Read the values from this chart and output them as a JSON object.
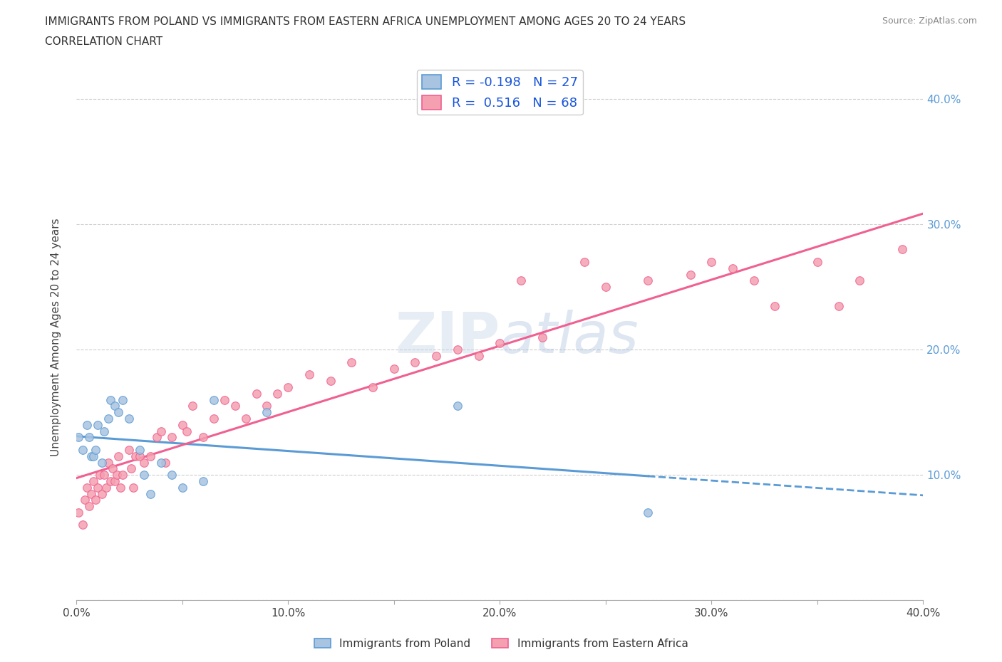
{
  "title_line1": "IMMIGRANTS FROM POLAND VS IMMIGRANTS FROM EASTERN AFRICA UNEMPLOYMENT AMONG AGES 20 TO 24 YEARS",
  "title_line2": "CORRELATION CHART",
  "source": "Source: ZipAtlas.com",
  "ylabel": "Unemployment Among Ages 20 to 24 years",
  "xlim": [
    0.0,
    0.4
  ],
  "ylim": [
    0.0,
    0.42
  ],
  "legend_label1": "Immigrants from Poland",
  "legend_label2": "Immigrants from Eastern Africa",
  "R1": -0.198,
  "N1": 27,
  "R2": 0.516,
  "N2": 68,
  "color_poland": "#a8c4e0",
  "color_eastern_africa": "#f4a0b0",
  "trend_color_poland": "#5b9bd5",
  "trend_color_eastern_africa": "#f06090",
  "background_color": "#ffffff",
  "poland_x": [
    0.001,
    0.003,
    0.005,
    0.006,
    0.007,
    0.008,
    0.009,
    0.01,
    0.012,
    0.013,
    0.015,
    0.016,
    0.018,
    0.02,
    0.022,
    0.025,
    0.03,
    0.032,
    0.035,
    0.04,
    0.045,
    0.05,
    0.06,
    0.065,
    0.09,
    0.18,
    0.27
  ],
  "poland_y": [
    0.13,
    0.12,
    0.14,
    0.13,
    0.115,
    0.115,
    0.12,
    0.14,
    0.11,
    0.135,
    0.145,
    0.16,
    0.155,
    0.15,
    0.16,
    0.145,
    0.12,
    0.1,
    0.085,
    0.11,
    0.1,
    0.09,
    0.095,
    0.16,
    0.15,
    0.155,
    0.07
  ],
  "eastern_africa_x": [
    0.001,
    0.003,
    0.004,
    0.005,
    0.006,
    0.007,
    0.008,
    0.009,
    0.01,
    0.011,
    0.012,
    0.013,
    0.014,
    0.015,
    0.016,
    0.017,
    0.018,
    0.019,
    0.02,
    0.021,
    0.022,
    0.025,
    0.026,
    0.027,
    0.028,
    0.03,
    0.032,
    0.035,
    0.038,
    0.04,
    0.042,
    0.045,
    0.05,
    0.052,
    0.055,
    0.06,
    0.065,
    0.07,
    0.075,
    0.08,
    0.085,
    0.09,
    0.095,
    0.1,
    0.11,
    0.12,
    0.13,
    0.14,
    0.15,
    0.16,
    0.17,
    0.18,
    0.19,
    0.2,
    0.21,
    0.22,
    0.24,
    0.25,
    0.27,
    0.29,
    0.3,
    0.31,
    0.32,
    0.33,
    0.35,
    0.36,
    0.37,
    0.39
  ],
  "eastern_africa_y": [
    0.07,
    0.06,
    0.08,
    0.09,
    0.075,
    0.085,
    0.095,
    0.08,
    0.09,
    0.1,
    0.085,
    0.1,
    0.09,
    0.11,
    0.095,
    0.105,
    0.095,
    0.1,
    0.115,
    0.09,
    0.1,
    0.12,
    0.105,
    0.09,
    0.115,
    0.115,
    0.11,
    0.115,
    0.13,
    0.135,
    0.11,
    0.13,
    0.14,
    0.135,
    0.155,
    0.13,
    0.145,
    0.16,
    0.155,
    0.145,
    0.165,
    0.155,
    0.165,
    0.17,
    0.18,
    0.175,
    0.19,
    0.17,
    0.185,
    0.19,
    0.195,
    0.2,
    0.195,
    0.205,
    0.255,
    0.21,
    0.27,
    0.25,
    0.255,
    0.26,
    0.27,
    0.265,
    0.255,
    0.235,
    0.27,
    0.235,
    0.255,
    0.28
  ]
}
